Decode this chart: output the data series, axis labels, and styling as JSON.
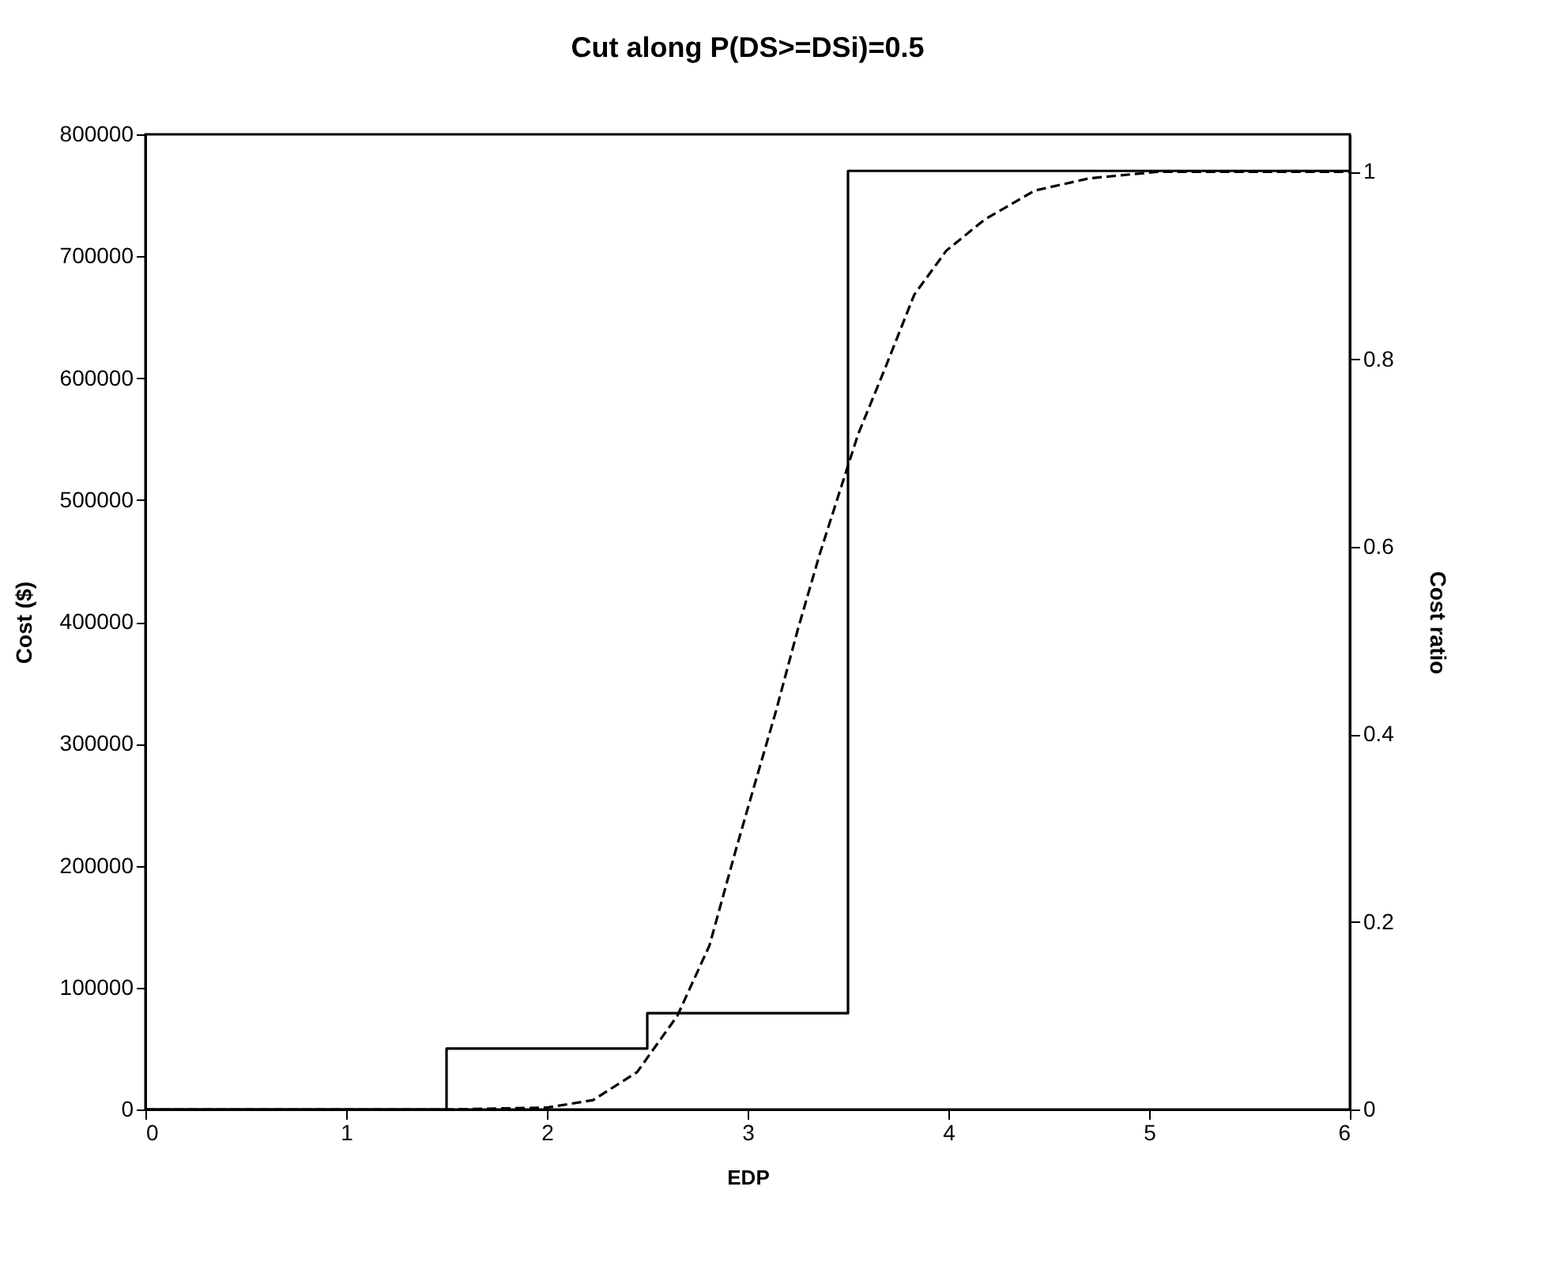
{
  "chart_data": {
    "type": "line",
    "title": "Cut along P(DS>=DSi)=0.5",
    "xlabel": "EDP",
    "ylabel": "Cost ($)",
    "y2label": "Cost ratio",
    "xlim": [
      0,
      6
    ],
    "xticks": [
      0,
      1,
      2,
      3,
      4,
      5,
      6
    ],
    "ylim": [
      0,
      800000
    ],
    "yticks": [
      0,
      100000,
      200000,
      300000,
      400000,
      500000,
      600000,
      700000,
      800000
    ],
    "y2lim": [
      0,
      1.04
    ],
    "y2ticks": [
      0,
      0.2,
      0.4,
      0.6,
      0.8,
      1
    ],
    "marker": "none",
    "series": [
      {
        "type": "step",
        "color": "#000000",
        "line_style": "solid",
        "x": [
          0,
          1.5,
          2.5,
          3.5,
          6
        ],
        "values": [
          0,
          50000,
          79000,
          770000,
          770000
        ]
      },
      {
        "type": "line",
        "axis": "y2",
        "color": "#000000",
        "line_style": "dashed",
        "x": [
          0,
          1.5,
          2.0,
          2.23,
          2.45,
          2.65,
          2.81,
          2.94,
          3.03,
          3.14,
          3.25,
          3.36,
          3.46,
          3.55,
          3.68,
          3.83,
          3.99,
          4.18,
          4.43,
          4.7,
          5.04,
          5.5,
          6
        ],
        "values": [
          0,
          0,
          0.002,
          0.01,
          0.04,
          0.1,
          0.175,
          0.276,
          0.343,
          0.424,
          0.512,
          0.593,
          0.66,
          0.72,
          0.788,
          0.869,
          0.916,
          0.949,
          0.98,
          0.993,
          1,
          1,
          1
        ]
      }
    ]
  }
}
